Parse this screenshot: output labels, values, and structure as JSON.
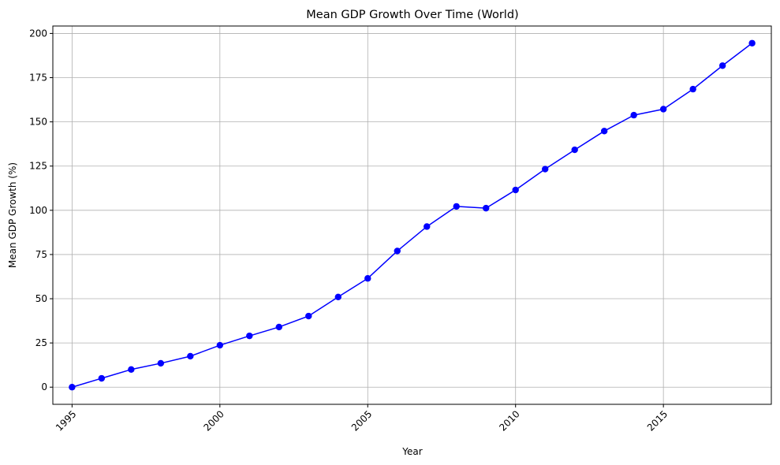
{
  "chart_data": {
    "type": "line",
    "title": "Mean GDP Growth Over Time (World)",
    "xlabel": "Year",
    "ylabel": "Mean GDP Growth (%)",
    "xlim": [
      1994.35,
      2018.65
    ],
    "ylim": [
      -9.7,
      204.2
    ],
    "xticks": [
      1995,
      2000,
      2005,
      2010,
      2015
    ],
    "yticks": [
      0,
      25,
      50,
      75,
      100,
      125,
      150,
      175,
      200
    ],
    "grid": true,
    "marker": "circle",
    "colors": {
      "line": "#0000ff",
      "grid": "#b0b0b0",
      "axes": "#000000"
    },
    "series": [
      {
        "x": [
          1995,
          1996,
          1997,
          1998,
          1999,
          2000,
          2001,
          2002,
          2003,
          2004,
          2005,
          2006,
          2007,
          2008,
          2009,
          2010,
          2011,
          2012,
          2013,
          2014,
          2015,
          2016,
          2017,
          2018
        ],
        "values": [
          0,
          5,
          10,
          13.5,
          17.5,
          23.7,
          29,
          34,
          40.2,
          51,
          61.5,
          77,
          90.8,
          102.2,
          101.2,
          111.5,
          123.3,
          134.2,
          144.8,
          153.8,
          157.2,
          168.5,
          181.8,
          194.5
        ]
      }
    ]
  }
}
